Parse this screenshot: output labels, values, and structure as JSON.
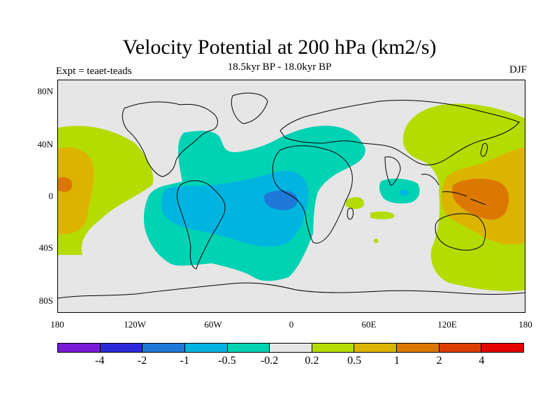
{
  "header": {
    "title": "Velocity Potential at 200 hPa (km2/s)",
    "subtitle": "18.5kyr BP - 18.0kyr BP",
    "left_label": "Expt = teaet-teads",
    "right_label": "DJF"
  },
  "axes": {
    "y_ticks": [
      "80N",
      "40N",
      "0",
      "40S",
      "80S"
    ],
    "x_ticks": [
      "180",
      "120W",
      "60W",
      "0",
      "60E",
      "120E",
      "180"
    ]
  },
  "colorbar": {
    "colors": [
      "#7a1ad8",
      "#2a2ad8",
      "#1e78d8",
      "#00b4e0",
      "#00d2b4",
      "#e6e6e6",
      "#b4dc00",
      "#dcb400",
      "#dc7800",
      "#dc3c00",
      "#e60000"
    ],
    "labels": [
      "-4",
      "-2",
      "-1",
      "-0.5",
      "-0.2",
      "0.2",
      "0.5",
      "1",
      "2",
      "4"
    ]
  },
  "colors": {
    "neutral": "#e6e6e6",
    "coast": "#000000"
  }
}
